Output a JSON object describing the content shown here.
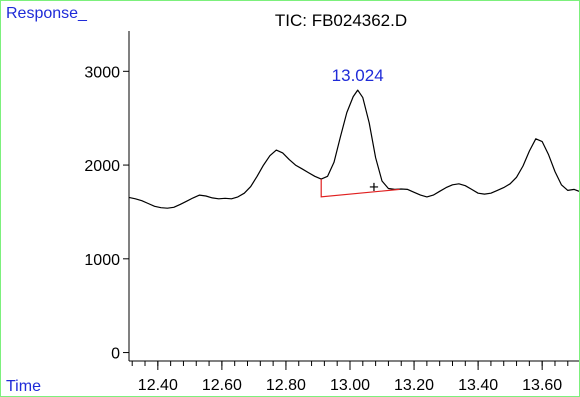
{
  "chart_data": {
    "type": "line",
    "title": "TIC: FB024362.D",
    "ylabel": "Response_",
    "xlabel": "Time",
    "xlim": [
      12.31,
      13.715
    ],
    "ylim": [
      -90,
      3430
    ],
    "yticks": [
      {
        "value": 0,
        "label": "0"
      },
      {
        "value": 1000,
        "label": "1000"
      },
      {
        "value": 2000,
        "label": "2000"
      },
      {
        "value": 3000,
        "label": "3000"
      }
    ],
    "xticks": [
      {
        "value": 12.4,
        "label": "12.40"
      },
      {
        "value": 12.6,
        "label": "12.60"
      },
      {
        "value": 12.8,
        "label": "12.80"
      },
      {
        "value": 13.0,
        "label": "13.00"
      },
      {
        "value": 13.2,
        "label": "13.20"
      },
      {
        "value": 13.4,
        "label": "13.40"
      },
      {
        "value": 13.6,
        "label": "13.60"
      }
    ],
    "minor_step": 0.04,
    "peak_label": {
      "text": "13.024",
      "x": 13.024,
      "y": 2800
    },
    "marker": {
      "symbol": "+",
      "x": 13.075,
      "y": 1770
    },
    "baseline": [
      {
        "x": 12.91,
        "y": 1850
      },
      {
        "x": 12.91,
        "y": 1660
      },
      {
        "x": 13.155,
        "y": 1740
      }
    ],
    "series": [
      {
        "points": [
          [
            12.31,
            1655
          ],
          [
            12.33,
            1640
          ],
          [
            12.35,
            1620
          ],
          [
            12.37,
            1590
          ],
          [
            12.39,
            1560
          ],
          [
            12.41,
            1545
          ],
          [
            12.43,
            1540
          ],
          [
            12.45,
            1550
          ],
          [
            12.47,
            1580
          ],
          [
            12.49,
            1615
          ],
          [
            12.51,
            1650
          ],
          [
            12.53,
            1680
          ],
          [
            12.55,
            1670
          ],
          [
            12.57,
            1650
          ],
          [
            12.59,
            1640
          ],
          [
            12.61,
            1645
          ],
          [
            12.63,
            1640
          ],
          [
            12.65,
            1660
          ],
          [
            12.67,
            1700
          ],
          [
            12.69,
            1770
          ],
          [
            12.71,
            1880
          ],
          [
            12.73,
            2000
          ],
          [
            12.75,
            2100
          ],
          [
            12.77,
            2160
          ],
          [
            12.79,
            2130
          ],
          [
            12.81,
            2060
          ],
          [
            12.83,
            2000
          ],
          [
            12.85,
            1960
          ],
          [
            12.87,
            1920
          ],
          [
            12.89,
            1880
          ],
          [
            12.91,
            1850
          ],
          [
            12.93,
            1880
          ],
          [
            12.95,
            2030
          ],
          [
            12.97,
            2300
          ],
          [
            12.99,
            2560
          ],
          [
            13.01,
            2730
          ],
          [
            13.024,
            2800
          ],
          [
            13.04,
            2720
          ],
          [
            13.06,
            2450
          ],
          [
            13.08,
            2080
          ],
          [
            13.1,
            1830
          ],
          [
            13.12,
            1750
          ],
          [
            13.14,
            1740
          ],
          [
            13.16,
            1745
          ],
          [
            13.18,
            1740
          ],
          [
            13.2,
            1710
          ],
          [
            13.22,
            1680
          ],
          [
            13.24,
            1660
          ],
          [
            13.26,
            1680
          ],
          [
            13.28,
            1720
          ],
          [
            13.3,
            1760
          ],
          [
            13.32,
            1790
          ],
          [
            13.34,
            1800
          ],
          [
            13.36,
            1780
          ],
          [
            13.38,
            1740
          ],
          [
            13.4,
            1700
          ],
          [
            13.42,
            1690
          ],
          [
            13.44,
            1700
          ],
          [
            13.46,
            1730
          ],
          [
            13.48,
            1760
          ],
          [
            13.5,
            1800
          ],
          [
            13.52,
            1870
          ],
          [
            13.54,
            1990
          ],
          [
            13.56,
            2150
          ],
          [
            13.58,
            2280
          ],
          [
            13.6,
            2250
          ],
          [
            13.62,
            2110
          ],
          [
            13.64,
            1930
          ],
          [
            13.66,
            1790
          ],
          [
            13.68,
            1730
          ],
          [
            13.7,
            1740
          ],
          [
            13.715,
            1720
          ]
        ]
      }
    ]
  }
}
